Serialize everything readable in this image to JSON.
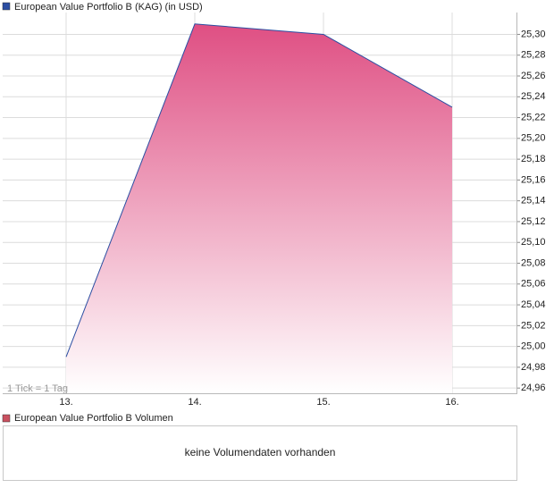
{
  "chart_data": {
    "type": "area",
    "categories": [
      "13.",
      "14.",
      "15.",
      "16."
    ],
    "series": [
      {
        "name": "European Value Portfolio B (KAG) (in USD)",
        "color": "#2b4ea2",
        "fill": "#df4f83",
        "values": [
          24.99,
          25.31,
          25.3,
          25.23
        ]
      }
    ],
    "ylim": [
      24.955,
      25.321
    ],
    "yticks": [
      {
        "value": 24.96,
        "label": "24,96"
      },
      {
        "value": 24.98,
        "label": "24,98"
      },
      {
        "value": 25.0,
        "label": "25,00"
      },
      {
        "value": 25.02,
        "label": "25,02"
      },
      {
        "value": 25.04,
        "label": "25,04"
      },
      {
        "value": 25.06,
        "label": "25,06"
      },
      {
        "value": 25.08,
        "label": "25,08"
      },
      {
        "value": 25.1,
        "label": "25,10"
      },
      {
        "value": 25.12,
        "label": "25,12"
      },
      {
        "value": 25.14,
        "label": "25,14"
      },
      {
        "value": 25.16,
        "label": "25,16"
      },
      {
        "value": 25.18,
        "label": "25,18"
      },
      {
        "value": 25.2,
        "label": "25,20"
      },
      {
        "value": 25.22,
        "label": "25,22"
      },
      {
        "value": 25.24,
        "label": "25,24"
      },
      {
        "value": 25.26,
        "label": "25,26"
      },
      {
        "value": 25.28,
        "label": "25,28"
      },
      {
        "value": 25.3,
        "label": "25,30"
      }
    ],
    "grid": true,
    "annotation": "1 Tick = 1 Tag"
  },
  "volume": {
    "title": "European Value Portfolio B Volumen",
    "color": "#c9505f",
    "message": "keine Volumendaten vorhanden"
  }
}
